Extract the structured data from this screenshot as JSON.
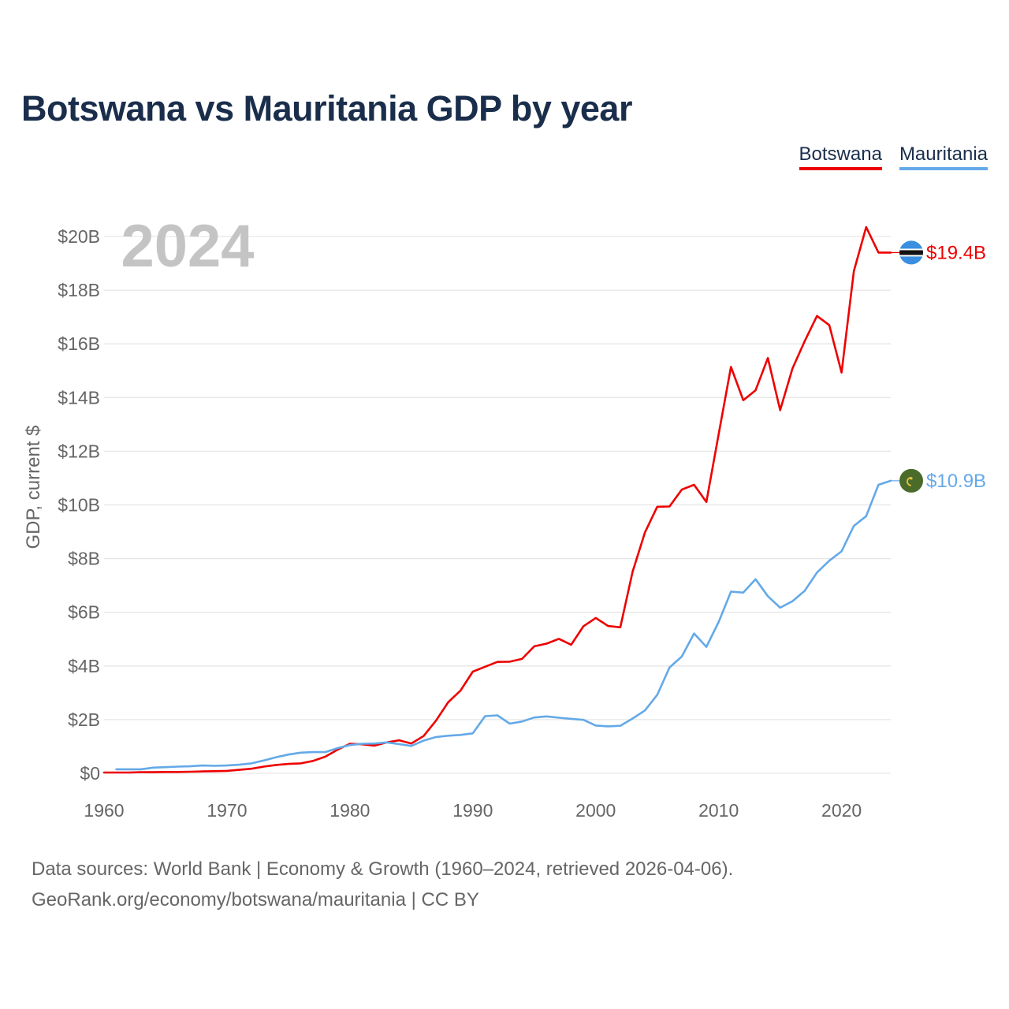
{
  "title": "Botswana vs Mauritania GDP by year",
  "legend": [
    {
      "name": "Botswana",
      "color": "#ee0000"
    },
    {
      "name": "Mauritania",
      "color": "#64a9e8"
    }
  ],
  "year_label": "2024",
  "footer": {
    "line1": "Data sources: World Bank | Economy & Growth (1960–2024, retrieved 2026-04-06).",
    "line2": "GeoRank.org/economy/botswana/mauritania | CC BY"
  },
  "chart_data": {
    "type": "line",
    "title": "Botswana vs Mauritania GDP by year",
    "xlabel": "",
    "ylabel": "GDP, current $",
    "xlim": [
      1960,
      2024
    ],
    "ylim": [
      0,
      20
    ],
    "y_unit": "billion USD",
    "x_ticks": [
      1960,
      1970,
      1980,
      1990,
      2000,
      2010,
      2020
    ],
    "y_ticks": [
      0,
      2,
      4,
      6,
      8,
      10,
      12,
      14,
      16,
      18,
      20
    ],
    "y_tick_labels": [
      "$0",
      "$2B",
      "$4B",
      "$6B",
      "$8B",
      "$10B",
      "$12B",
      "$14B",
      "$16B",
      "$18B",
      "$20B"
    ],
    "grid": true,
    "legend_position": "top-right",
    "series": [
      {
        "name": "Botswana",
        "color": "#ee0000",
        "end_label": "$19.4B",
        "x": [
          1960,
          1961,
          1962,
          1963,
          1964,
          1965,
          1966,
          1967,
          1968,
          1969,
          1970,
          1971,
          1972,
          1973,
          1974,
          1975,
          1976,
          1977,
          1978,
          1979,
          1980,
          1981,
          1982,
          1983,
          1984,
          1985,
          1986,
          1987,
          1988,
          1989,
          1990,
          1991,
          1992,
          1993,
          1994,
          1995,
          1996,
          1997,
          1998,
          1999,
          2000,
          2001,
          2002,
          2003,
          2004,
          2005,
          2006,
          2007,
          2008,
          2009,
          2010,
          2011,
          2012,
          2013,
          2014,
          2015,
          2016,
          2017,
          2018,
          2019,
          2020,
          2021,
          2022,
          2023,
          2024
        ],
        "values": [
          0.03,
          0.03,
          0.03,
          0.04,
          0.04,
          0.05,
          0.05,
          0.06,
          0.07,
          0.08,
          0.09,
          0.13,
          0.17,
          0.25,
          0.31,
          0.35,
          0.37,
          0.46,
          0.62,
          0.88,
          1.1,
          1.08,
          1.03,
          1.15,
          1.23,
          1.11,
          1.39,
          1.96,
          2.65,
          3.08,
          3.79,
          3.97,
          4.15,
          4.16,
          4.26,
          4.73,
          4.83,
          5.01,
          4.79,
          5.48,
          5.79,
          5.49,
          5.44,
          7.51,
          8.97,
          9.93,
          9.94,
          10.57,
          10.75,
          10.11,
          12.64,
          15.14,
          13.9,
          14.27,
          15.47,
          13.53,
          15.08,
          16.1,
          17.04,
          16.7,
          14.93,
          18.71,
          20.35,
          19.4,
          19.4
        ]
      },
      {
        "name": "Mauritania",
        "color": "#64a9e8",
        "end_label": "$10.9B",
        "x": [
          1961,
          1962,
          1963,
          1964,
          1965,
          1966,
          1967,
          1968,
          1969,
          1970,
          1971,
          1972,
          1973,
          1974,
          1975,
          1976,
          1977,
          1978,
          1979,
          1980,
          1981,
          1982,
          1983,
          1984,
          1985,
          1986,
          1987,
          1988,
          1989,
          1990,
          1991,
          1992,
          1993,
          1994,
          1995,
          1996,
          1997,
          1998,
          1999,
          2000,
          2001,
          2002,
          2003,
          2004,
          2005,
          2006,
          2007,
          2008,
          2009,
          2010,
          2011,
          2012,
          2013,
          2014,
          2015,
          2016,
          2017,
          2018,
          2019,
          2020,
          2021,
          2022,
          2023,
          2024
        ],
        "values": [
          0.15,
          0.15,
          0.15,
          0.21,
          0.23,
          0.25,
          0.26,
          0.29,
          0.28,
          0.29,
          0.32,
          0.37,
          0.48,
          0.6,
          0.7,
          0.77,
          0.79,
          0.79,
          0.94,
          1.05,
          1.1,
          1.11,
          1.15,
          1.09,
          1.02,
          1.22,
          1.35,
          1.4,
          1.43,
          1.49,
          2.13,
          2.16,
          1.85,
          1.93,
          2.08,
          2.12,
          2.07,
          2.03,
          1.99,
          1.78,
          1.75,
          1.77,
          2.04,
          2.34,
          2.92,
          3.94,
          4.35,
          5.21,
          4.71,
          5.64,
          6.77,
          6.73,
          7.23,
          6.6,
          6.17,
          6.41,
          6.8,
          7.48,
          7.92,
          8.27,
          9.22,
          9.58,
          10.75,
          10.9
        ]
      }
    ]
  }
}
